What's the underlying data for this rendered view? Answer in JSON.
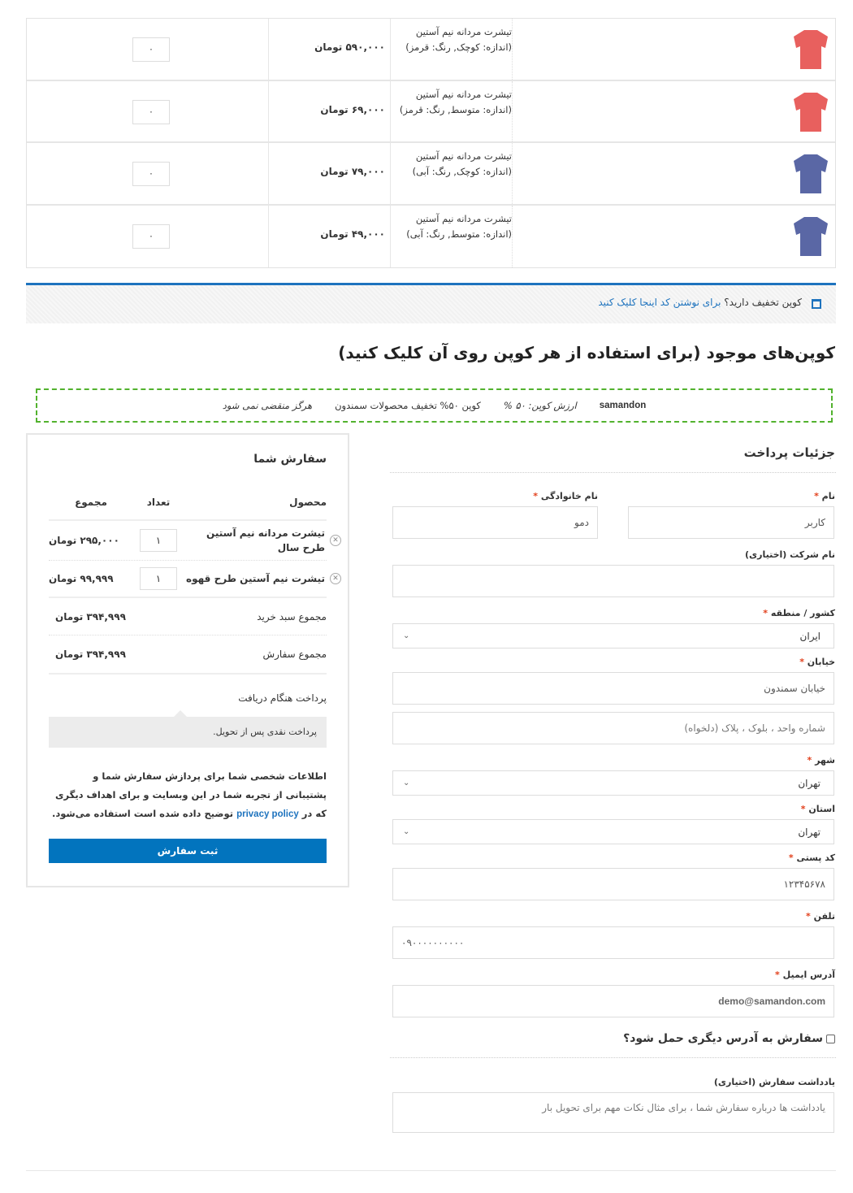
{
  "cart": {
    "items": [
      {
        "name": "تیشرت مردانه نیم آستین",
        "variant": "(اندازه: کوچک, رنگ: قرمز)",
        "price": "۵۹۰,۰۰۰ تومان",
        "qty": "۰",
        "color": "#e8605e"
      },
      {
        "name": "تیشرت مردانه نیم آستین",
        "variant": "(اندازه: متوسط, رنگ: قرمز)",
        "price": "۶۹,۰۰۰ تومان",
        "qty": "۰",
        "color": "#e8605e"
      },
      {
        "name": "تیشرت مردانه نیم آستین",
        "variant": "(اندازه: کوچک, رنگ: آبی)",
        "price": "۷۹,۰۰۰ تومان",
        "qty": "۰",
        "color": "#5a67a5"
      },
      {
        "name": "تیشرت مردانه نیم آستین",
        "variant": "(اندازه: متوسط, رنگ: آبی)",
        "price": "۴۹,۰۰۰ تومان",
        "qty": "۰",
        "color": "#5a67a5"
      }
    ]
  },
  "coupon_bar": {
    "text": "کوپن تخفیف دارید؟",
    "link": "برای نوشتن کد اینجا کلیک کنید"
  },
  "coupons": {
    "title": "کوپن‌های موجود (برای استفاده از هر کوپن روی آن کلیک کنید)",
    "code": "samandon",
    "value": "ارزش کوپن: ۵۰ %",
    "description": "کوپن ۵۰% تخفیف محصولات سمندون",
    "expiry": "هرگز منقضی نمی شود"
  },
  "billing": {
    "title": "جزئیات پرداخت",
    "first_name": {
      "label": "نام",
      "value": "کاربر"
    },
    "last_name": {
      "label": "نام خانوادگی",
      "value": "دمو"
    },
    "company": {
      "label": "نام شرکت (اختیاری)",
      "value": ""
    },
    "country": {
      "label": "کشور / منطقه",
      "value": "ایران"
    },
    "street": {
      "label": "خیابان",
      "value": "خیابان سمندون",
      "placeholder2": "شماره واحد ، بلوک ، پلاک (دلخواه)"
    },
    "city": {
      "label": "شهر",
      "value": "تهران"
    },
    "state": {
      "label": "استان",
      "value": "تهران"
    },
    "postcode": {
      "label": "کد پستی",
      "value": "۱۲۳۴۵۶۷۸"
    },
    "phone": {
      "label": "تلفن",
      "value": "۰۹۰۰۰۰۰۰۰۰۰۰"
    },
    "email": {
      "label": "آدرس ایمیل",
      "value": "demo@samandon.com"
    },
    "ship_different": "سفارش به آدرس دیگری حمل شود؟",
    "notes": {
      "label": "یادداشت سفارش (اختیاری)",
      "placeholder": "یادداشت ها درباره سفارش شما ، برای مثال نکات مهم برای تحویل بار"
    }
  },
  "order": {
    "title": "سفارش شما",
    "headers": {
      "product": "محصول",
      "qty": "تعداد",
      "total": "مجموع"
    },
    "items": [
      {
        "name": "تیشرت مردانه نیم آستین طرح سال",
        "qty": "۱",
        "total": "۲۹۵,۰۰۰ تومان"
      },
      {
        "name": "تیشرت نیم آستین طرح قهوه",
        "qty": "۱",
        "total": "۹۹,۹۹۹ تومان"
      }
    ],
    "subtotal_label": "مجموع سبد خرید",
    "subtotal": "۳۹۴,۹۹۹ تومان",
    "total_label": "مجموع سفارش",
    "total": "۳۹۴,۹۹۹ تومان",
    "payment_method": "پرداخت هنگام دریافت",
    "payment_desc": "پرداخت نقدی پس از تحویل.",
    "privacy_before": "اطلاعات شخصی شما برای پردازش سفارش شما و پشتیبانی از تجربه شما در این وبسایت و برای اهداف دیگری که در ",
    "privacy_link": "privacy policy",
    "privacy_after": " توضیح داده شده است استفاده می‌شود.",
    "place_order": "ثبت سفارش"
  },
  "colors": {
    "accent": "#1e73be",
    "button": "#0274be",
    "coupon_border": "#52b22e",
    "required": "#e2401c"
  }
}
